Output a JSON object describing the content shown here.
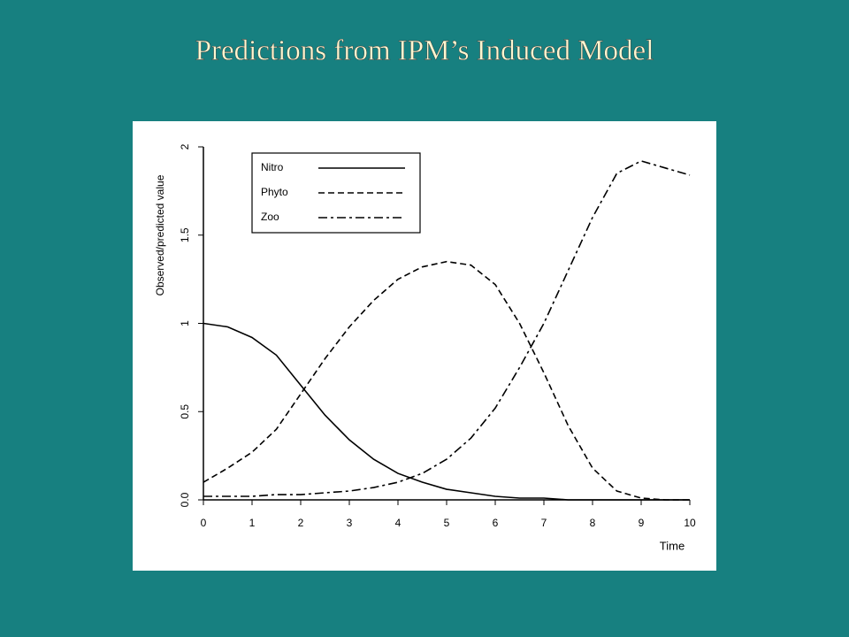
{
  "chart_data": {
    "type": "line",
    "title": "Predictions from IPM’s Induced Model",
    "y_label": "Observed/predicted value",
    "x_label": "Time",
    "x": [
      0,
      0.5,
      1,
      1.5,
      2,
      2.5,
      3,
      3.5,
      4,
      4.5,
      5,
      5.5,
      6,
      6.5,
      7,
      7.5,
      8,
      8.5,
      9,
      9.5,
      10
    ],
    "xlim": [
      0,
      10
    ],
    "xticks": [
      0,
      1,
      2,
      3,
      4,
      5,
      6,
      7,
      8,
      9,
      10
    ],
    "ylim": [
      0,
      2
    ],
    "yticks": [
      {
        "value": 0,
        "label": "0.0"
      },
      0.5,
      1,
      1.5,
      2
    ],
    "series": [
      {
        "name": "Nitro",
        "color": "#000000",
        "dash": "solid",
        "values": [
          1.0,
          0.98,
          0.92,
          0.82,
          0.65,
          0.48,
          0.34,
          0.23,
          0.15,
          0.1,
          0.06,
          0.04,
          0.02,
          0.01,
          0.01,
          0,
          0,
          0,
          0,
          0,
          0
        ]
      },
      {
        "name": "Phyto",
        "color": "#000000",
        "dash": "dashed",
        "values": [
          0.1,
          0.18,
          0.27,
          0.4,
          0.6,
          0.8,
          0.98,
          1.13,
          1.25,
          1.32,
          1.35,
          1.33,
          1.22,
          1.0,
          0.72,
          0.42,
          0.18,
          0.05,
          0.01,
          0,
          0
        ]
      },
      {
        "name": "Zoo",
        "color": "#000000",
        "dash": "dashdot",
        "values": [
          0.02,
          0.02,
          0.02,
          0.03,
          0.03,
          0.04,
          0.05,
          0.07,
          0.1,
          0.15,
          0.23,
          0.35,
          0.52,
          0.75,
          1.0,
          1.3,
          1.6,
          1.85,
          1.92,
          1.88,
          1.84
        ]
      }
    ]
  }
}
